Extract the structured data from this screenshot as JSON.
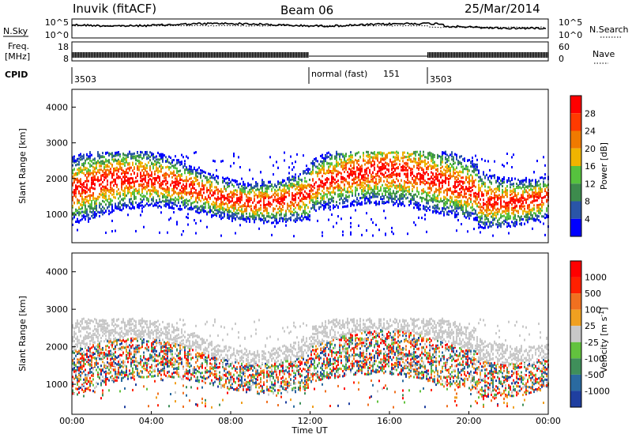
{
  "header": {
    "station": "Inuvik (fitACF)",
    "beam": "Beam 06",
    "date": "25/Mar/2014"
  },
  "top_panels": {
    "nsky_label": "N.Sky",
    "nsky_ticks": [
      "10^5",
      "10^0"
    ],
    "nsearch_label": "N.Search",
    "nsearch_ticks": [
      "10^5",
      "10^0"
    ],
    "freq_label_1": "Freq.",
    "freq_label_2": "[MHz]",
    "freq_ticks": [
      "18",
      "8"
    ],
    "nave_label": "Nave",
    "nave_ticks": [
      "60",
      "0"
    ],
    "cpid_label": "CPID",
    "cpid_segments": [
      {
        "text": "3503"
      },
      {
        "text": "normal (fast)"
      },
      {
        "text": "151"
      },
      {
        "text": "3503"
      }
    ]
  },
  "chart_data": [
    {
      "type": "heatmap",
      "title": "",
      "ylabel": "Slant Range [km]",
      "xlabel": "",
      "x_range": [
        "00:00",
        "24:00"
      ],
      "ylim": [
        200,
        4500
      ],
      "yticks": [
        "4000",
        "3000",
        "2000",
        "1000"
      ],
      "colorbar": {
        "label": "Power [dB]",
        "ticks": [
          "28",
          "24",
          "20",
          "16",
          "12",
          "8",
          "4"
        ],
        "colors": [
          "#0000ff",
          "#2a55a8",
          "#3d8b4d",
          "#56c23e",
          "#f0b400",
          "#f07a00",
          "#ff3a00",
          "#ff0000"
        ],
        "range": [
          0,
          30
        ]
      }
    },
    {
      "type": "heatmap",
      "title": "",
      "ylabel": "Slant Range [km]",
      "xlabel": "Time UT",
      "x_range": [
        "00:00",
        "24:00"
      ],
      "ylim": [
        200,
        4500
      ],
      "yticks": [
        "4000",
        "3000",
        "2000",
        "1000"
      ],
      "xticks": [
        "00:00",
        "04:00",
        "08:00",
        "12:00",
        "16:00",
        "20:00",
        "00:00"
      ],
      "colorbar": {
        "label": "Velocity [m s^-1]",
        "ticks": [
          "1000",
          "500",
          "100",
          "25",
          "-25",
          "-100",
          "-500",
          "-1000"
        ],
        "colors": [
          "#1f3fa0",
          "#2a6aa0",
          "#3f8f5a",
          "#62c23e",
          "#c8c8c8",
          "#f0a020",
          "#f07020",
          "#ff2000",
          "#ff0000"
        ]
      }
    }
  ]
}
